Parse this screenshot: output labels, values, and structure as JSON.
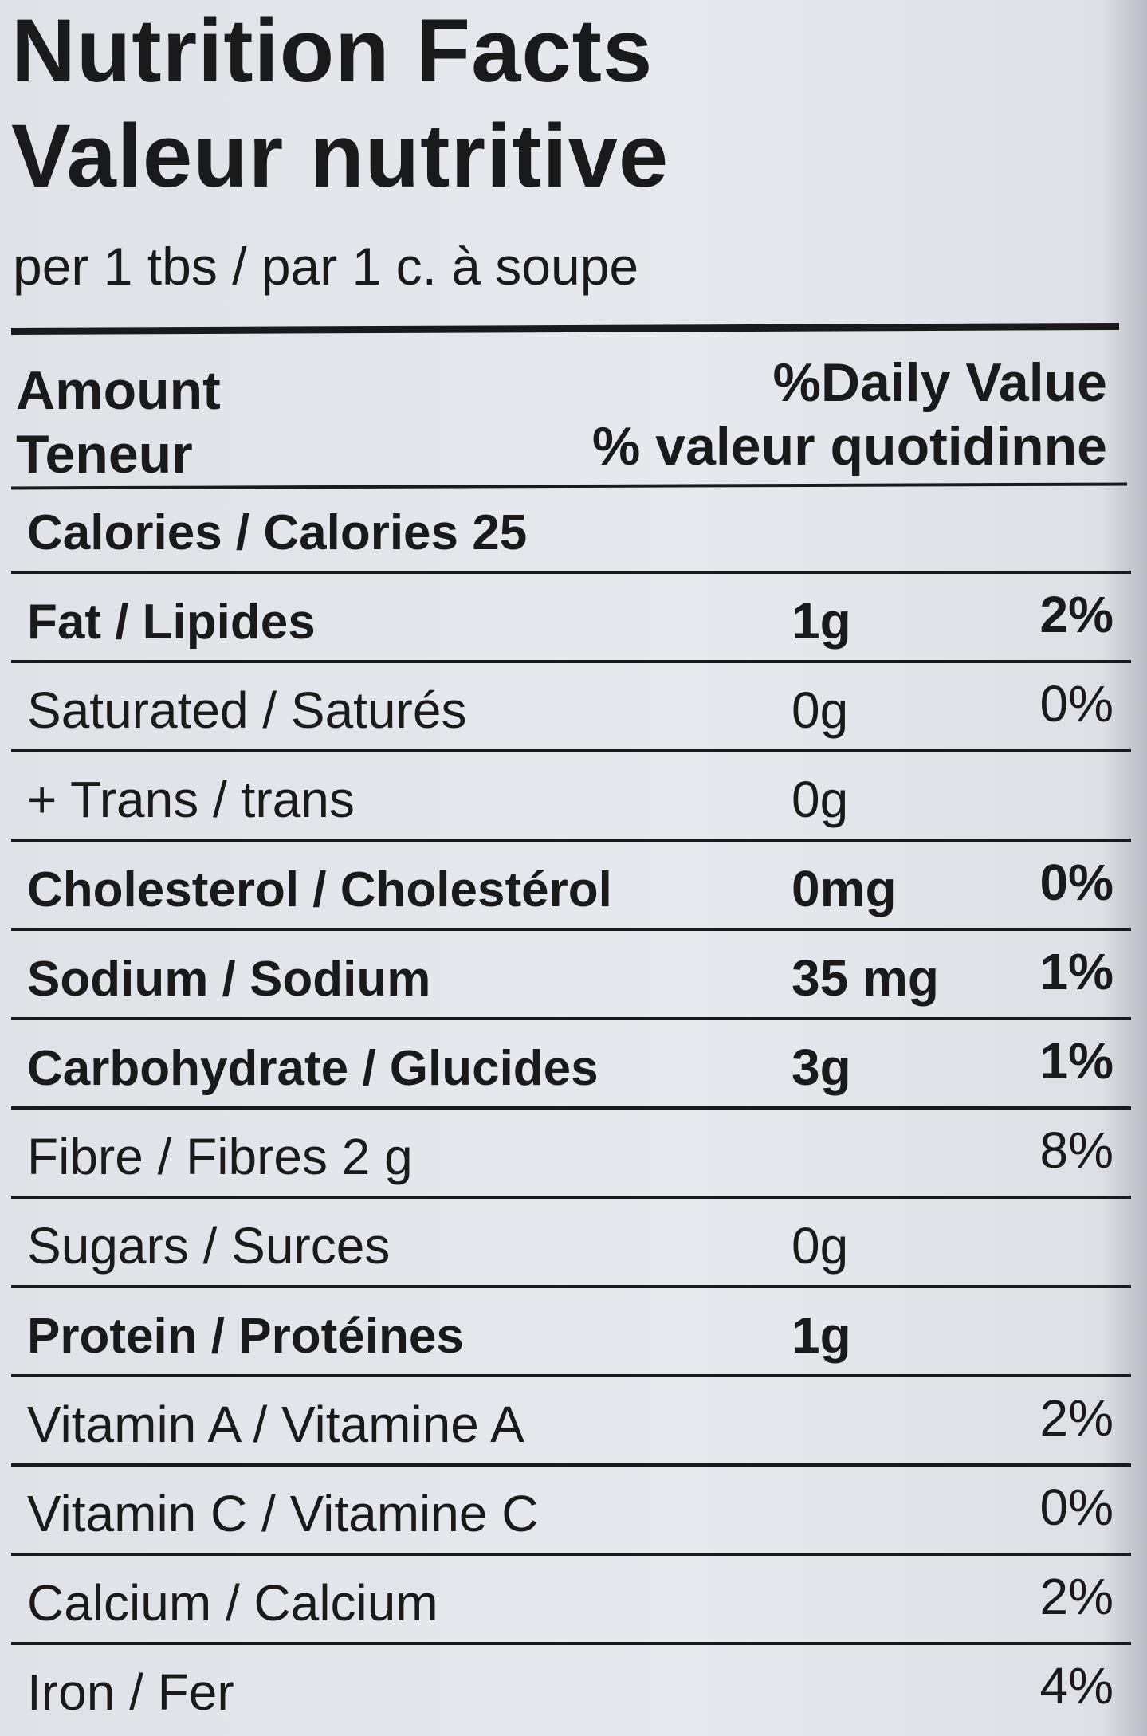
{
  "title_en": "Nutrition Facts",
  "title_fr": "Valeur nutritive",
  "serving": "per 1 tbs / par  1 c. à soupe",
  "header": {
    "amount_en": "Amount",
    "amount_fr": "Teneur",
    "dv_en": "%Daily Value",
    "dv_fr": "% valeur quotidinne"
  },
  "rows": [
    {
      "name": "Calories / Calories 25",
      "amount": "",
      "pct": "",
      "bold": true
    },
    {
      "name": "Fat / Lipides",
      "amount": "1g",
      "pct": "2%",
      "bold": true
    },
    {
      "name": "Saturated / Saturés",
      "amount": "0g",
      "pct": "0%",
      "bold": false
    },
    {
      "name": "+ Trans / trans",
      "amount": "0g",
      "pct": "",
      "bold": false
    },
    {
      "name": "Cholesterol / Cholestérol",
      "amount": "0mg",
      "pct": "0%",
      "bold": true
    },
    {
      "name": "Sodium / Sodium",
      "amount": "35 mg",
      "pct": "1%",
      "bold": true
    },
    {
      "name": "Carbohydrate / Glucides",
      "amount": "3g",
      "pct": "1%",
      "bold": true
    },
    {
      "name": "Fibre / Fibres 2 g",
      "amount": "",
      "pct": "8%",
      "bold": false
    },
    {
      "name": "Sugars / Surces",
      "amount": "0g",
      "pct": "",
      "bold": false
    },
    {
      "name": "Protein / Protéines",
      "amount": "1g",
      "pct": "",
      "bold": true
    },
    {
      "name": "Vitamin A / Vitamine A",
      "amount": "",
      "pct": "2%",
      "bold": false
    },
    {
      "name": "Vitamin C / Vitamine  C",
      "amount": "",
      "pct": "0%",
      "bold": false
    },
    {
      "name": "Calcium / Calcium",
      "amount": "",
      "pct": "2%",
      "bold": false
    },
    {
      "name": "Iron / Fer",
      "amount": "",
      "pct": "4%",
      "bold": false
    }
  ]
}
